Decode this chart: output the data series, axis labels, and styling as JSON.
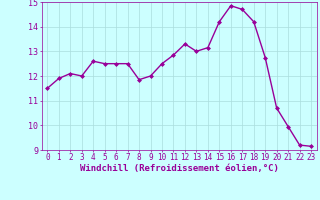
{
  "x": [
    0,
    1,
    2,
    3,
    4,
    5,
    6,
    7,
    8,
    9,
    10,
    11,
    12,
    13,
    14,
    15,
    16,
    17,
    18,
    19,
    20,
    21,
    22,
    23
  ],
  "y": [
    11.5,
    11.9,
    12.1,
    12.0,
    12.6,
    12.5,
    12.5,
    12.5,
    11.85,
    12.0,
    12.5,
    12.85,
    13.3,
    13.0,
    13.15,
    14.2,
    14.85,
    14.7,
    14.2,
    12.75,
    10.7,
    9.95,
    9.2,
    9.15
  ],
  "line_color": "#990099",
  "marker": "D",
  "marker_size": 2.0,
  "bg_color": "#ccffff",
  "grid_color": "#aadddd",
  "xlabel": "Windchill (Refroidissement éolien,°C)",
  "xlim": [
    -0.5,
    23.5
  ],
  "ylim": [
    9,
    15
  ],
  "yticks": [
    9,
    10,
    11,
    12,
    13,
    14,
    15
  ],
  "xticks": [
    0,
    1,
    2,
    3,
    4,
    5,
    6,
    7,
    8,
    9,
    10,
    11,
    12,
    13,
    14,
    15,
    16,
    17,
    18,
    19,
    20,
    21,
    22,
    23
  ],
  "tick_color": "#990099",
  "tick_labelsize": 5.5,
  "xlabel_fontsize": 6.5,
  "linewidth": 1.0,
  "fig_width": 3.2,
  "fig_height": 2.0,
  "dpi": 100
}
